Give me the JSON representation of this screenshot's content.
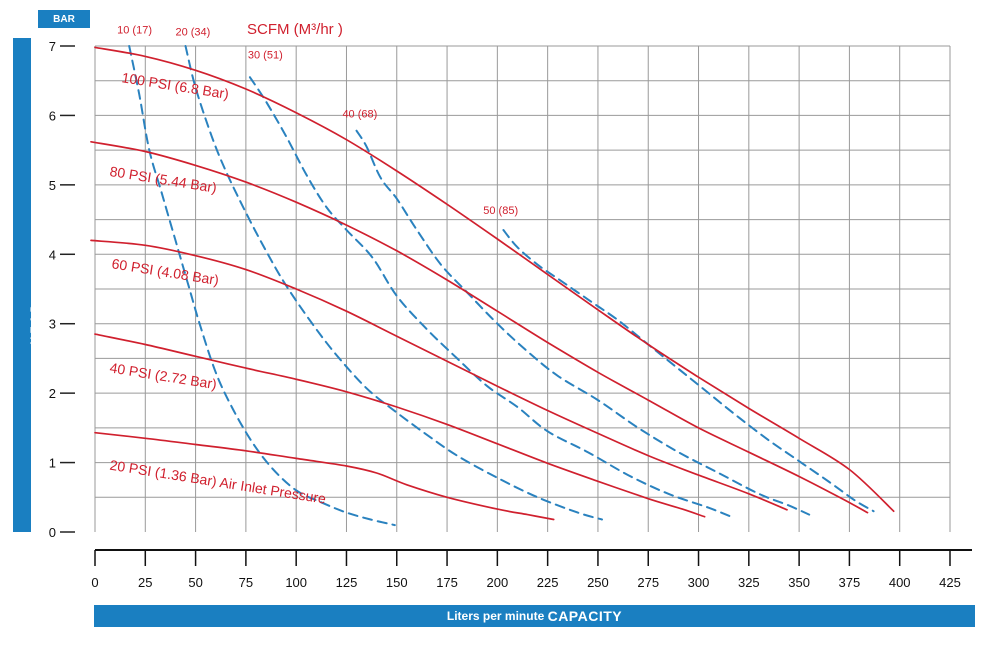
{
  "labels": {
    "y_unit": "BAR",
    "y_axis": "HEAD",
    "x_axis_prefix": "Liters per minute ",
    "x_axis_main": "CAPACITY",
    "scfm_title": "SCFM (M³/hr )"
  },
  "colors": {
    "accent_blue": "#1a7fc1",
    "pressure_red": "#d0202e",
    "scfm_blue": "#2a82bf",
    "grid": "#9a9a9a"
  },
  "chart_data": {
    "type": "line",
    "xlim": [
      0,
      425
    ],
    "ylim": [
      0,
      7
    ],
    "x_ticks": [
      0,
      25,
      50,
      75,
      100,
      125,
      150,
      175,
      200,
      225,
      250,
      275,
      300,
      325,
      350,
      375,
      400,
      425
    ],
    "y_ticks": [
      0,
      1,
      2,
      3,
      4,
      5,
      6,
      7
    ],
    "grid": true,
    "series": [
      {
        "name": "100 PSI (6.8 Bar)",
        "style": "solid",
        "points": [
          [
            0,
            6.98
          ],
          [
            25,
            6.85
          ],
          [
            50,
            6.65
          ],
          [
            75,
            6.38
          ],
          [
            100,
            6.04
          ],
          [
            125,
            5.65
          ],
          [
            150,
            5.2
          ],
          [
            175,
            4.72
          ],
          [
            200,
            4.22
          ],
          [
            225,
            3.71
          ],
          [
            250,
            3.2
          ],
          [
            275,
            2.7
          ],
          [
            300,
            2.23
          ],
          [
            325,
            1.78
          ],
          [
            350,
            1.35
          ],
          [
            375,
            0.9
          ],
          [
            397,
            0.3
          ]
        ],
        "label_at": [
          13,
          6.48
        ]
      },
      {
        "name": "80 PSI (5.44 Bar)",
        "style": "solid",
        "points": [
          [
            -2,
            5.62
          ],
          [
            25,
            5.48
          ],
          [
            50,
            5.28
          ],
          [
            75,
            5.04
          ],
          [
            100,
            4.75
          ],
          [
            125,
            4.42
          ],
          [
            150,
            4.05
          ],
          [
            175,
            3.63
          ],
          [
            200,
            3.18
          ],
          [
            225,
            2.73
          ],
          [
            250,
            2.3
          ],
          [
            275,
            1.9
          ],
          [
            300,
            1.5
          ],
          [
            325,
            1.15
          ],
          [
            350,
            0.8
          ],
          [
            370,
            0.5
          ],
          [
            384,
            0.28
          ]
        ],
        "label_at": [
          7,
          5.13
        ]
      },
      {
        "name": "60 PSI (4.08 Bar)",
        "style": "solid",
        "points": [
          [
            -2,
            4.2
          ],
          [
            25,
            4.13
          ],
          [
            50,
            3.98
          ],
          [
            75,
            3.78
          ],
          [
            100,
            3.5
          ],
          [
            125,
            3.18
          ],
          [
            150,
            2.82
          ],
          [
            175,
            2.46
          ],
          [
            200,
            2.1
          ],
          [
            225,
            1.75
          ],
          [
            250,
            1.42
          ],
          [
            275,
            1.1
          ],
          [
            300,
            0.82
          ],
          [
            325,
            0.55
          ],
          [
            344,
            0.32
          ]
        ],
        "label_at": [
          8,
          3.8
        ]
      },
      {
        "name": "40 PSI (2.72 Bar)",
        "style": "solid",
        "points": [
          [
            0,
            2.85
          ],
          [
            25,
            2.7
          ],
          [
            50,
            2.53
          ],
          [
            75,
            2.36
          ],
          [
            100,
            2.2
          ],
          [
            125,
            2.02
          ],
          [
            150,
            1.8
          ],
          [
            175,
            1.55
          ],
          [
            200,
            1.27
          ],
          [
            225,
            0.99
          ],
          [
            250,
            0.73
          ],
          [
            275,
            0.48
          ],
          [
            292,
            0.33
          ],
          [
            303,
            0.22
          ]
        ],
        "label_at": [
          7,
          2.3
        ]
      },
      {
        "name": "20 PSI (1.36 Bar) Air Inlet Pressure",
        "style": "solid",
        "points": [
          [
            0,
            1.43
          ],
          [
            25,
            1.35
          ],
          [
            50,
            1.26
          ],
          [
            75,
            1.17
          ],
          [
            100,
            1.06
          ],
          [
            125,
            0.95
          ],
          [
            140,
            0.85
          ],
          [
            155,
            0.68
          ],
          [
            175,
            0.5
          ],
          [
            200,
            0.33
          ],
          [
            215,
            0.25
          ],
          [
            228,
            0.18
          ]
        ],
        "label_at": [
          7,
          0.9
        ]
      },
      {
        "name": "10 (17)",
        "style": "dashed",
        "points": [
          [
            17,
            7.0
          ],
          [
            22,
            6.3
          ],
          [
            27,
            5.5
          ],
          [
            33,
            4.9
          ],
          [
            40,
            4.2
          ],
          [
            46,
            3.6
          ],
          [
            52,
            3.0
          ],
          [
            60,
            2.3
          ],
          [
            68,
            1.8
          ],
          [
            78,
            1.3
          ],
          [
            88,
            0.92
          ],
          [
            100,
            0.6
          ],
          [
            113,
            0.42
          ],
          [
            125,
            0.28
          ],
          [
            137,
            0.18
          ],
          [
            149,
            0.1
          ]
        ],
        "label_at": [
          11,
          7.18
        ]
      },
      {
        "name": "20 (34)",
        "style": "dashed",
        "points": [
          [
            45,
            7.0
          ],
          [
            50,
            6.4
          ],
          [
            58,
            5.7
          ],
          [
            65,
            5.2
          ],
          [
            75,
            4.6
          ],
          [
            85,
            4.05
          ],
          [
            95,
            3.55
          ],
          [
            108,
            3.0
          ],
          [
            120,
            2.55
          ],
          [
            135,
            2.07
          ],
          [
            150,
            1.72
          ],
          [
            165,
            1.4
          ],
          [
            180,
            1.1
          ],
          [
            200,
            0.78
          ],
          [
            220,
            0.5
          ],
          [
            240,
            0.28
          ],
          [
            252,
            0.18
          ]
        ],
        "label_at": [
          40,
          7.15
        ]
      },
      {
        "name": "30 (51)",
        "style": "dashed",
        "points": [
          [
            77,
            6.55
          ],
          [
            85,
            6.2
          ],
          [
            95,
            5.7
          ],
          [
            105,
            5.15
          ],
          [
            115,
            4.68
          ],
          [
            125,
            4.35
          ],
          [
            138,
            3.95
          ],
          [
            150,
            3.4
          ],
          [
            165,
            2.92
          ],
          [
            180,
            2.5
          ],
          [
            195,
            2.1
          ],
          [
            210,
            1.8
          ],
          [
            225,
            1.45
          ],
          [
            245,
            1.15
          ],
          [
            265,
            0.82
          ],
          [
            285,
            0.55
          ],
          [
            305,
            0.35
          ],
          [
            318,
            0.2
          ]
        ],
        "label_at": [
          76,
          6.82
        ]
      },
      {
        "name": "40 (68)",
        "style": "dashed",
        "points": [
          [
            130,
            5.78
          ],
          [
            135,
            5.55
          ],
          [
            142,
            5.1
          ],
          [
            150,
            4.8
          ],
          [
            160,
            4.35
          ],
          [
            172,
            3.85
          ],
          [
            185,
            3.45
          ],
          [
            200,
            3.0
          ],
          [
            215,
            2.6
          ],
          [
            230,
            2.25
          ],
          [
            250,
            1.9
          ],
          [
            270,
            1.5
          ],
          [
            290,
            1.15
          ],
          [
            310,
            0.85
          ],
          [
            330,
            0.55
          ],
          [
            345,
            0.38
          ],
          [
            355,
            0.25
          ]
        ],
        "label_at": [
          123,
          5.97
        ]
      },
      {
        "name": "50 (85)",
        "style": "dashed",
        "points": [
          [
            203,
            4.35
          ],
          [
            210,
            4.1
          ],
          [
            220,
            3.85
          ],
          [
            230,
            3.65
          ],
          [
            245,
            3.35
          ],
          [
            260,
            3.05
          ],
          [
            275,
            2.7
          ],
          [
            290,
            2.35
          ],
          [
            305,
            2.0
          ],
          [
            320,
            1.65
          ],
          [
            335,
            1.32
          ],
          [
            350,
            1.02
          ],
          [
            365,
            0.72
          ],
          [
            378,
            0.45
          ],
          [
            387,
            0.3
          ]
        ],
        "label_at": [
          193,
          4.58
        ]
      }
    ]
  }
}
